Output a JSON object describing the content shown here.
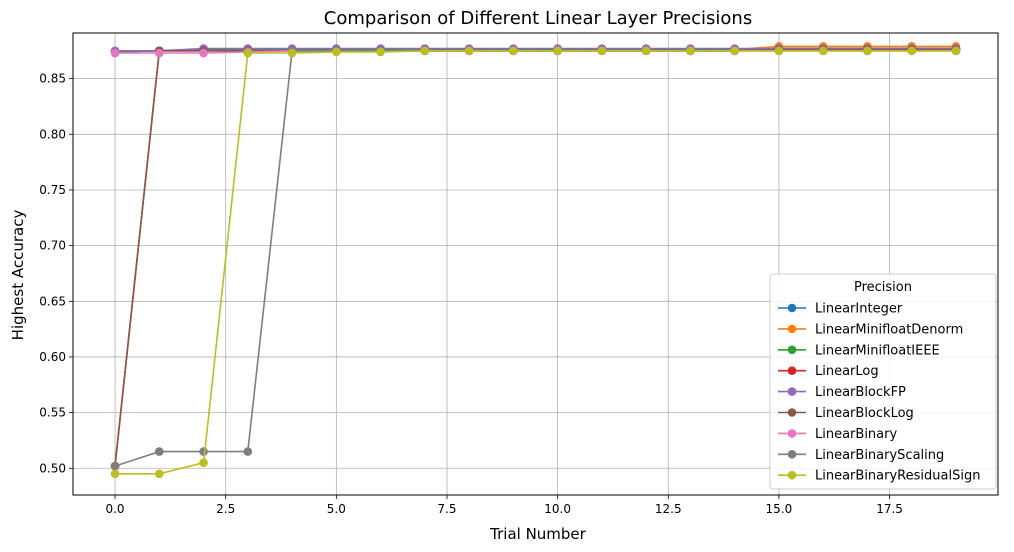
{
  "chart_data": {
    "type": "line",
    "title": "Comparison of Different Linear Layer Precisions",
    "xlabel": "Trial Number",
    "ylabel": "Highest Accuracy",
    "xlim": [
      -0.95,
      19.95
    ],
    "ylim": [
      0.476,
      0.891
    ],
    "x_ticks": [
      0.0,
      2.5,
      5.0,
      7.5,
      10.0,
      12.5,
      15.0,
      17.5
    ],
    "x_tick_labels": [
      "0.0",
      "2.5",
      "5.0",
      "7.5",
      "10.0",
      "12.5",
      "15.0",
      "17.5"
    ],
    "y_ticks": [
      0.5,
      0.55,
      0.6,
      0.65,
      0.7,
      0.75,
      0.8,
      0.85
    ],
    "y_tick_labels": [
      "0.50",
      "0.55",
      "0.60",
      "0.65",
      "0.70",
      "0.75",
      "0.80",
      "0.85"
    ],
    "grid": true,
    "legend_title": "Precision",
    "legend_position": "bottom-right",
    "x": [
      0,
      1,
      2,
      3,
      4,
      5,
      6,
      7,
      8,
      9,
      10,
      11,
      12,
      13,
      14,
      15,
      16,
      17,
      18,
      19
    ],
    "series": [
      {
        "name": "LinearInteger",
        "color": "#1f77b4",
        "values": [
          0.874,
          0.875,
          0.876,
          0.876,
          0.876,
          0.876,
          0.876,
          0.876,
          0.876,
          0.876,
          0.876,
          0.876,
          0.876,
          0.876,
          0.876,
          0.877,
          0.877,
          0.877,
          0.877,
          0.877
        ]
      },
      {
        "name": "LinearMinifloatDenorm",
        "color": "#ff7f0e",
        "values": [
          0.874,
          0.875,
          0.876,
          0.876,
          0.876,
          0.876,
          0.876,
          0.876,
          0.876,
          0.876,
          0.876,
          0.876,
          0.876,
          0.876,
          0.876,
          0.879,
          0.879,
          0.879,
          0.879,
          0.879
        ]
      },
      {
        "name": "LinearMinifloatIEEE",
        "color": "#2ca02c",
        "values": [
          0.874,
          0.875,
          0.876,
          0.876,
          0.876,
          0.876,
          0.876,
          0.876,
          0.876,
          0.876,
          0.876,
          0.876,
          0.876,
          0.876,
          0.876,
          0.877,
          0.877,
          0.877,
          0.877,
          0.877
        ]
      },
      {
        "name": "LinearLog",
        "color": "#d62728",
        "values": [
          0.502,
          0.875,
          0.875,
          0.875,
          0.875,
          0.875,
          0.875,
          0.875,
          0.875,
          0.875,
          0.875,
          0.875,
          0.875,
          0.875,
          0.875,
          0.876,
          0.876,
          0.876,
          0.876,
          0.876
        ]
      },
      {
        "name": "LinearBlockFP",
        "color": "#9467bd",
        "values": [
          0.875,
          0.875,
          0.877,
          0.877,
          0.877,
          0.877,
          0.877,
          0.877,
          0.877,
          0.877,
          0.877,
          0.877,
          0.877,
          0.877,
          0.877,
          0.877,
          0.877,
          0.877,
          0.877,
          0.877
        ]
      },
      {
        "name": "LinearBlockLog",
        "color": "#8c564b",
        "values": [
          0.502,
          0.875,
          0.875,
          0.875,
          0.875,
          0.875,
          0.875,
          0.875,
          0.875,
          0.875,
          0.875,
          0.875,
          0.875,
          0.875,
          0.875,
          0.876,
          0.876,
          0.876,
          0.876,
          0.876
        ]
      },
      {
        "name": "LinearBinary",
        "color": "#e377c2",
        "values": [
          0.873,
          0.873,
          0.873,
          0.874,
          0.875,
          0.875,
          0.875,
          0.875,
          0.875,
          0.875,
          0.875,
          0.875,
          0.875,
          0.875,
          0.875,
          0.875,
          0.875,
          0.875,
          0.875,
          0.875
        ]
      },
      {
        "name": "LinearBinaryScaling",
        "color": "#7f7f7f",
        "values": [
          0.502,
          0.515,
          0.515,
          0.515,
          0.875,
          0.875,
          0.875,
          0.875,
          0.875,
          0.875,
          0.875,
          0.875,
          0.875,
          0.875,
          0.875,
          0.875,
          0.875,
          0.875,
          0.875,
          0.875
        ]
      },
      {
        "name": "LinearBinaryResidualSign",
        "color": "#bcbd22",
        "values": [
          0.495,
          0.495,
          0.505,
          0.873,
          0.873,
          0.874,
          0.874,
          0.875,
          0.875,
          0.875,
          0.875,
          0.875,
          0.875,
          0.875,
          0.875,
          0.875,
          0.875,
          0.875,
          0.875,
          0.875
        ]
      }
    ]
  }
}
